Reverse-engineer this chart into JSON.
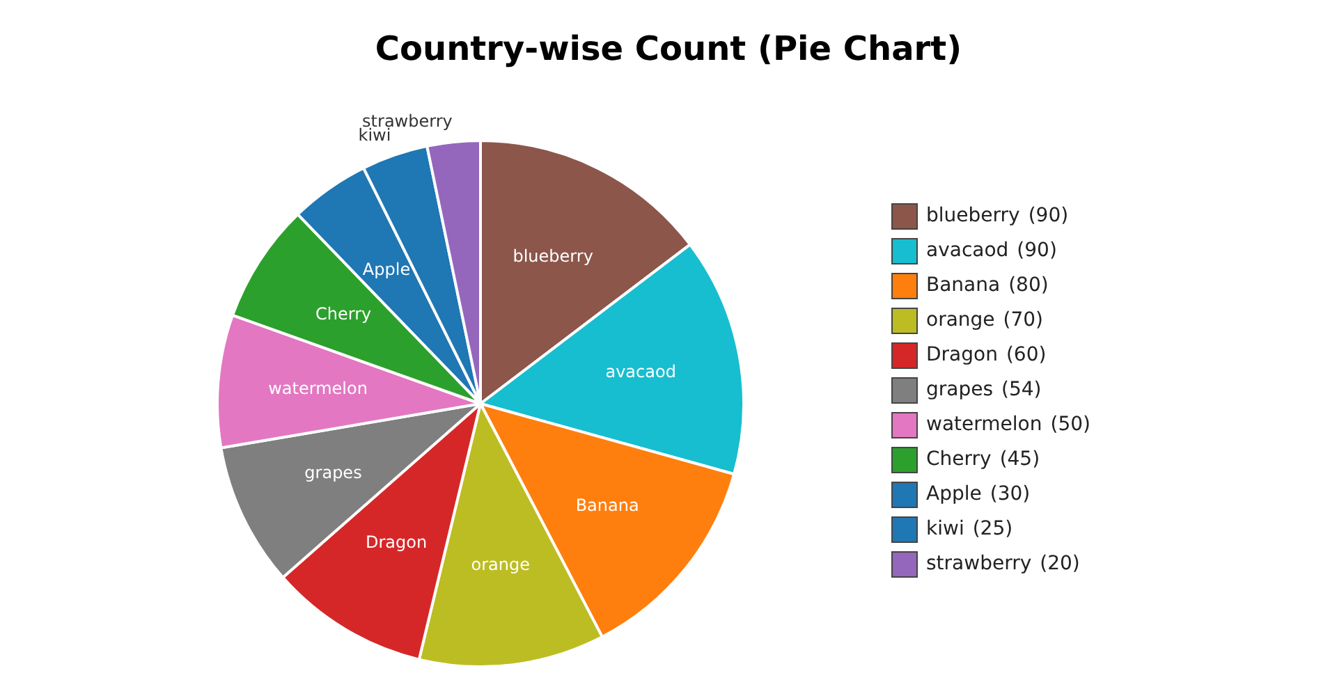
{
  "chart_data": {
    "type": "pie",
    "title": "Country-wise Count (Pie Chart)",
    "categories": [
      "blueberry",
      "avacaod",
      "Banana",
      "orange",
      "Dragon",
      "grapes",
      "watermelon",
      "Cherry",
      "Apple",
      "kiwi",
      "strawberry"
    ],
    "values": [
      90,
      90,
      80,
      70,
      60,
      54,
      50,
      45,
      30,
      25,
      20
    ],
    "value_labels": [
      "(90)",
      "(90)",
      "(80)",
      "(70)",
      "(60)",
      "(54)",
      "(50)",
      "(45)",
      "(30)",
      "(25)",
      "(20)"
    ],
    "colors": [
      "#8c564b",
      "#17becf",
      "#ff7f0e",
      "#bcbd22",
      "#d62728",
      "#7f7f7f",
      "#e377c2",
      "#2ca02c",
      "#1f77b4",
      "#1f77b4",
      "#9467bd"
    ],
    "legend": "right"
  }
}
